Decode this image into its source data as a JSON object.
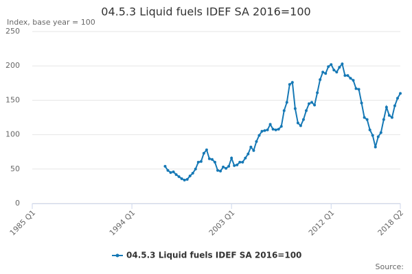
{
  "chart_data": {
    "type": "line",
    "title": "04.5.3 Liquid fuels IDEF SA 2016=100",
    "subtitle": "Index, base year = 100",
    "source": "Source:",
    "categories": [
      "1985 Q1",
      null,
      null,
      null,
      null,
      null,
      null,
      null,
      null,
      null,
      null,
      null,
      null,
      null,
      null,
      null,
      null,
      null,
      null,
      null,
      null,
      null,
      null,
      null,
      null,
      null,
      null,
      null,
      null,
      null,
      null,
      null,
      null,
      null,
      null,
      null,
      "1994 Q1",
      null,
      null,
      null,
      null,
      null,
      null,
      null,
      null,
      null,
      null,
      null,
      null,
      null,
      null,
      null,
      null,
      null,
      null,
      null,
      null,
      null,
      null,
      null,
      null,
      null,
      null,
      null,
      null,
      null,
      null,
      null,
      null,
      null,
      null,
      null,
      "2003 Q1",
      null,
      null,
      null,
      null,
      null,
      null,
      null,
      null,
      null,
      null,
      null,
      null,
      null,
      null,
      null,
      null,
      null,
      null,
      null,
      null,
      null,
      null,
      null,
      null,
      null,
      null,
      null,
      null,
      null,
      null,
      null,
      null,
      null,
      null,
      null,
      "2012 Q1",
      null,
      null,
      null,
      null,
      null,
      null,
      null,
      null,
      null,
      null,
      null,
      null,
      null,
      null,
      null,
      null,
      null,
      null,
      null,
      null,
      null,
      null,
      null,
      null,
      "2018 Q2"
    ],
    "series": [
      {
        "name": "04.5.3 Liquid fuels IDEF SA 2016=100",
        "color": "#1578b5",
        "values": [
          null,
          null,
          null,
          null,
          null,
          null,
          null,
          null,
          null,
          null,
          null,
          null,
          null,
          null,
          null,
          null,
          null,
          null,
          null,
          null,
          null,
          null,
          null,
          null,
          null,
          null,
          null,
          null,
          null,
          null,
          null,
          null,
          null,
          null,
          null,
          null,
          null,
          null,
          null,
          null,
          null,
          null,
          null,
          null,
          null,
          null,
          null,
          null,
          54,
          48,
          45,
          46,
          42,
          39,
          36,
          34,
          35,
          40,
          44,
          50,
          60,
          61,
          73,
          78,
          65,
          64,
          60,
          48,
          47,
          53,
          51,
          54,
          66,
          55,
          56,
          60,
          60,
          66,
          72,
          82,
          77,
          90,
          99,
          105,
          106,
          107,
          115,
          108,
          107,
          108,
          112,
          135,
          147,
          173,
          176,
          138,
          117,
          113,
          122,
          135,
          145,
          147,
          143,
          161,
          180,
          191,
          189,
          199,
          202,
          194,
          191,
          198,
          203,
          186,
          186,
          182,
          179,
          167,
          166,
          146,
          125,
          122,
          107,
          99,
          82,
          97,
          103,
          122,
          140,
          128,
          125,
          142,
          153,
          160
        ]
      }
    ],
    "ylim": [
      0,
      250
    ],
    "yticks": [
      0,
      50,
      100,
      150,
      200,
      250
    ],
    "grid": true
  }
}
